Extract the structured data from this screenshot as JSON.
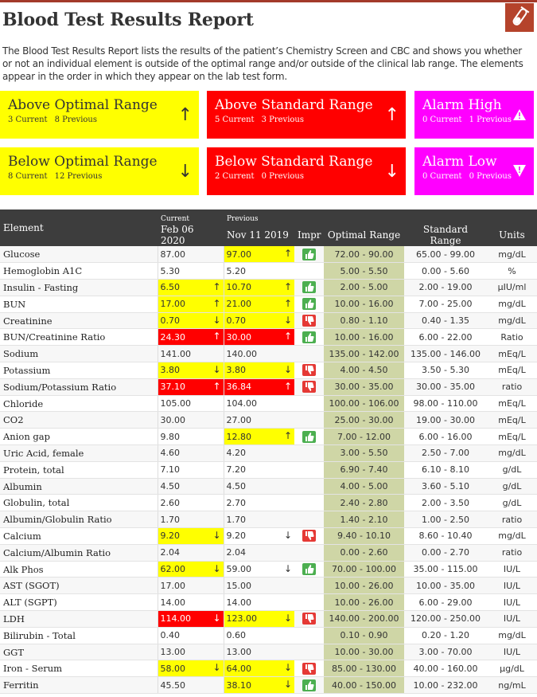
{
  "header": {
    "title": "Blood Test Results Report",
    "description": "The Blood Test Results Report lists the results of the patient’s Chemistry Screen and CBC and shows you whether or not an individual element is outside of the optimal range and/or outside of the clinical lab range. The elements appear in the order in which they appear on the lab test form.",
    "logo_icon": "test-tube-icon"
  },
  "summary": {
    "above_optimal": {
      "title": "Above Optimal Range",
      "current": "3 Current",
      "previous": "8 Previous",
      "arrow": "↑"
    },
    "above_standard": {
      "title": "Above Standard Range",
      "current": "5 Current",
      "previous": "3 Previous",
      "arrow": "↑"
    },
    "alarm_high": {
      "title": "Alarm High",
      "current": "0 Current",
      "previous": "1 Previous",
      "icon": "warning-triangle-icon"
    },
    "below_optimal": {
      "title": "Below Optimal Range",
      "current": "8 Current",
      "previous": "12 Previous",
      "arrow": "↓"
    },
    "below_standard": {
      "title": "Below Standard Range",
      "current": "2 Current",
      "previous": "0 Previous",
      "arrow": "↓"
    },
    "alarm_low": {
      "title": "Alarm Low",
      "current": "0 Current",
      "previous": "0 Previous",
      "icon": "warning-shield-icon"
    }
  },
  "colors": {
    "yellow": "#ffff00",
    "red": "#ff0000",
    "magenta": "#ff00ff",
    "range_bg": "#cfd6a6",
    "header_bg": "#3d3d3d"
  },
  "table": {
    "headers": {
      "element": "Element",
      "current_label": "Current",
      "current_date": "Feb 06 2020",
      "previous_label": "Previous",
      "previous_date": "Nov 11 2019",
      "impr": "Impr",
      "optimal": "Optimal Range",
      "standard": "Standard Range",
      "units": "Units"
    },
    "rows": [
      {
        "el": "Glucose",
        "cur": "87.00",
        "ca": "",
        "ch": "",
        "prev": "97.00",
        "pa": "↑",
        "ph": "y",
        "impr": "up",
        "opt": "72.00 - 90.00",
        "std": "65.00 - 99.00",
        "unit": "mg/dL"
      },
      {
        "el": "Hemoglobin A1C",
        "cur": "5.30",
        "ca": "",
        "ch": "",
        "prev": "5.20",
        "pa": "",
        "ph": "",
        "impr": "",
        "opt": "5.00 - 5.50",
        "std": "0.00 - 5.60",
        "unit": "%"
      },
      {
        "el": "Insulin - Fasting",
        "cur": "6.50",
        "ca": "↑",
        "ch": "y",
        "prev": "10.70",
        "pa": "↑",
        "ph": "y",
        "impr": "up",
        "opt": "2.00 - 5.00",
        "std": "2.00 - 19.00",
        "unit": "µIU/ml"
      },
      {
        "el": "BUN",
        "cur": "17.00",
        "ca": "↑",
        "ch": "y",
        "prev": "21.00",
        "pa": "↑",
        "ph": "y",
        "impr": "up",
        "opt": "10.00 - 16.00",
        "std": "7.00 - 25.00",
        "unit": "mg/dL"
      },
      {
        "el": "Creatinine",
        "cur": "0.70",
        "ca": "↓",
        "ch": "y",
        "prev": "0.70",
        "pa": "↓",
        "ph": "y",
        "impr": "down",
        "opt": "0.80 - 1.10",
        "std": "0.40 - 1.35",
        "unit": "mg/dL"
      },
      {
        "el": "BUN/Creatinine Ratio",
        "cur": "24.30",
        "ca": "↑",
        "ch": "r",
        "prev": "30.00",
        "pa": "↑",
        "ph": "r",
        "impr": "up",
        "opt": "10.00 - 16.00",
        "std": "6.00 - 22.00",
        "unit": "Ratio"
      },
      {
        "el": "Sodium",
        "cur": "141.00",
        "ca": "",
        "ch": "",
        "prev": "140.00",
        "pa": "",
        "ph": "",
        "impr": "",
        "opt": "135.00 - 142.00",
        "std": "135.00 - 146.00",
        "unit": "mEq/L"
      },
      {
        "el": "Potassium",
        "cur": "3.80",
        "ca": "↓",
        "ch": "y",
        "prev": "3.80",
        "pa": "↓",
        "ph": "y",
        "impr": "down",
        "opt": "4.00 - 4.50",
        "std": "3.50 - 5.30",
        "unit": "mEq/L"
      },
      {
        "el": "Sodium/Potassium Ratio",
        "cur": "37.10",
        "ca": "↑",
        "ch": "r",
        "prev": "36.84",
        "pa": "↑",
        "ph": "r",
        "impr": "down",
        "opt": "30.00 - 35.00",
        "std": "30.00 - 35.00",
        "unit": "ratio"
      },
      {
        "el": "Chloride",
        "cur": "105.00",
        "ca": "",
        "ch": "",
        "prev": "104.00",
        "pa": "",
        "ph": "",
        "impr": "",
        "opt": "100.00 - 106.00",
        "std": "98.00 - 110.00",
        "unit": "mEq/L"
      },
      {
        "el": "CO2",
        "cur": "30.00",
        "ca": "",
        "ch": "",
        "prev": "27.00",
        "pa": "",
        "ph": "",
        "impr": "",
        "opt": "25.00 - 30.00",
        "std": "19.00 - 30.00",
        "unit": "mEq/L"
      },
      {
        "el": "Anion gap",
        "cur": "9.80",
        "ca": "",
        "ch": "",
        "prev": "12.80",
        "pa": "↑",
        "ph": "y",
        "impr": "up",
        "opt": "7.00 - 12.00",
        "std": "6.00 - 16.00",
        "unit": "mEq/L"
      },
      {
        "el": "Uric Acid, female",
        "cur": "4.60",
        "ca": "",
        "ch": "",
        "prev": "4.20",
        "pa": "",
        "ph": "",
        "impr": "",
        "opt": "3.00 - 5.50",
        "std": "2.50 - 7.00",
        "unit": "mg/dL"
      },
      {
        "el": "Protein, total",
        "cur": "7.10",
        "ca": "",
        "ch": "",
        "prev": "7.20",
        "pa": "",
        "ph": "",
        "impr": "",
        "opt": "6.90 - 7.40",
        "std": "6.10 - 8.10",
        "unit": "g/dL"
      },
      {
        "el": "Albumin",
        "cur": "4.50",
        "ca": "",
        "ch": "",
        "prev": "4.50",
        "pa": "",
        "ph": "",
        "impr": "",
        "opt": "4.00 - 5.00",
        "std": "3.60 - 5.10",
        "unit": "g/dL"
      },
      {
        "el": "Globulin, total",
        "cur": "2.60",
        "ca": "",
        "ch": "",
        "prev": "2.70",
        "pa": "",
        "ph": "",
        "impr": "",
        "opt": "2.40 - 2.80",
        "std": "2.00 - 3.50",
        "unit": "g/dL"
      },
      {
        "el": "Albumin/Globulin Ratio",
        "cur": "1.70",
        "ca": "",
        "ch": "",
        "prev": "1.70",
        "pa": "",
        "ph": "",
        "impr": "",
        "opt": "1.40 - 2.10",
        "std": "1.00 - 2.50",
        "unit": "ratio"
      },
      {
        "el": "Calcium",
        "cur": "9.20",
        "ca": "↓",
        "ch": "y",
        "prev": "9.20",
        "pa": "↓",
        "ph": "",
        "impr": "down",
        "opt": "9.40 - 10.10",
        "std": "8.60 - 10.40",
        "unit": "mg/dL"
      },
      {
        "el": "Calcium/Albumin Ratio",
        "cur": "2.04",
        "ca": "",
        "ch": "",
        "prev": "2.04",
        "pa": "",
        "ph": "",
        "impr": "",
        "opt": "0.00 - 2.60",
        "std": "0.00 - 2.70",
        "unit": "ratio"
      },
      {
        "el": "Alk Phos",
        "cur": "62.00",
        "ca": "↓",
        "ch": "y",
        "prev": "59.00",
        "pa": "↓",
        "ph": "",
        "impr": "up",
        "opt": "70.00 - 100.00",
        "std": "35.00 - 115.00",
        "unit": "IU/L"
      },
      {
        "el": "AST (SGOT)",
        "cur": "17.00",
        "ca": "",
        "ch": "",
        "prev": "15.00",
        "pa": "",
        "ph": "",
        "impr": "",
        "opt": "10.00 - 26.00",
        "std": "10.00 - 35.00",
        "unit": "IU/L"
      },
      {
        "el": "ALT (SGPT)",
        "cur": "14.00",
        "ca": "",
        "ch": "",
        "prev": "14.00",
        "pa": "",
        "ph": "",
        "impr": "",
        "opt": "10.00 - 26.00",
        "std": "6.00 - 29.00",
        "unit": "IU/L"
      },
      {
        "el": "LDH",
        "cur": "114.00",
        "ca": "↓",
        "ch": "r",
        "prev": "123.00",
        "pa": "↓",
        "ph": "y",
        "impr": "down",
        "opt": "140.00 - 200.00",
        "std": "120.00 - 250.00",
        "unit": "IU/L"
      },
      {
        "el": "Bilirubin - Total",
        "cur": "0.40",
        "ca": "",
        "ch": "",
        "prev": "0.60",
        "pa": "",
        "ph": "",
        "impr": "",
        "opt": "0.10 - 0.90",
        "std": "0.20 - 1.20",
        "unit": "mg/dL"
      },
      {
        "el": "GGT",
        "cur": "13.00",
        "ca": "",
        "ch": "",
        "prev": "13.00",
        "pa": "",
        "ph": "",
        "impr": "",
        "opt": "10.00 - 30.00",
        "std": "3.00 - 70.00",
        "unit": "IU/L"
      },
      {
        "el": "Iron - Serum",
        "cur": "58.00",
        "ca": "↓",
        "ch": "y",
        "prev": "64.00",
        "pa": "↓",
        "ph": "y",
        "impr": "down",
        "opt": "85.00 - 130.00",
        "std": "40.00 - 160.00",
        "unit": "µg/dL"
      },
      {
        "el": "Ferritin",
        "cur": "45.50",
        "ca": "",
        "ch": "",
        "prev": "38.10",
        "pa": "↓",
        "ph": "y",
        "impr": "up",
        "opt": "40.00 - 150.00",
        "std": "10.00 - 232.00",
        "unit": "ng/mL"
      }
    ]
  }
}
